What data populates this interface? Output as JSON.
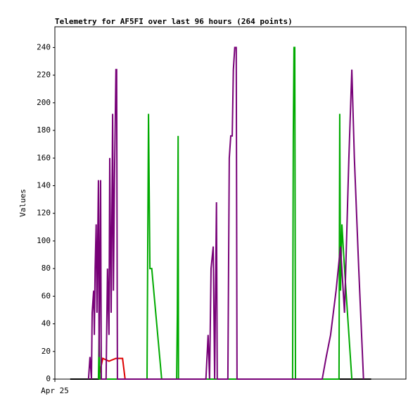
{
  "chart_data": {
    "type": "line",
    "title": "Telemetry for AF5FI over last 96 hours (264 points)",
    "y_label": "Values",
    "xlim": [
      0,
      96
    ],
    "xticks": [
      {
        "value": 0,
        "label": "Apr 25"
      }
    ],
    "ylim": [
      0,
      255
    ],
    "yticks": [
      0,
      20,
      40,
      60,
      80,
      100,
      120,
      140,
      160,
      180,
      200,
      220,
      240
    ],
    "grid": false,
    "series": [
      {
        "color": "#000000",
        "x": [
          4.2,
          86.5
        ],
        "values": [
          0,
          0
        ]
      },
      {
        "color": "#dd0000",
        "x": [
          11.9,
          13.1,
          14.8,
          16.7,
          18.5,
          19.2
        ],
        "values": [
          0,
          15,
          13,
          15,
          15,
          0
        ]
      },
      {
        "color": "#00aa00",
        "x": [
          11.9,
          12.1,
          12.3,
          25.2,
          25.4,
          25.6,
          26,
          26.5,
          29.2,
          33.3,
          33.5,
          33.7,
          33.8,
          65,
          65.2,
          65.4,
          65.6,
          65.8,
          77.7,
          77.9,
          78.1,
          78.5,
          79.2,
          81.2
        ],
        "values": [
          0,
          32,
          0,
          0,
          96,
          192,
          80,
          80,
          0,
          0,
          48,
          176,
          0,
          0,
          176,
          240,
          240,
          0,
          0,
          192,
          64,
          112,
          80,
          0
        ]
      },
      {
        "color": "#770077",
        "x": [
          9.2,
          9.6,
          10,
          10.2,
          10.6,
          10.8,
          11,
          11.3,
          11.5,
          11.9,
          12.1,
          12.5,
          12.7,
          14,
          14.4,
          14.8,
          15,
          15.4,
          15.8,
          16,
          16.3,
          16.7,
          16.9,
          17.1,
          41.3,
          41.9,
          42.3,
          42.7,
          43.3,
          43.7,
          44.2,
          44.4,
          47.3,
          47.7,
          48.1,
          48.5,
          48.8,
          49.2,
          49.6,
          49.8,
          73.1,
          74.2,
          75.4,
          76.9,
          78.1,
          79.2,
          80.4,
          81.2,
          81.9,
          83.1,
          84.4
        ],
        "values": [
          0,
          16,
          0,
          48,
          64,
          32,
          80,
          112,
          48,
          144,
          16,
          144,
          0,
          0,
          80,
          32,
          160,
          48,
          192,
          64,
          144,
          224,
          224,
          0,
          0,
          32,
          0,
          80,
          96,
          0,
          128,
          0,
          0,
          160,
          176,
          176,
          224,
          240,
          240,
          0,
          0,
          16,
          32,
          64,
          96,
          48,
          160,
          224,
          160,
          80,
          0
        ]
      }
    ]
  }
}
